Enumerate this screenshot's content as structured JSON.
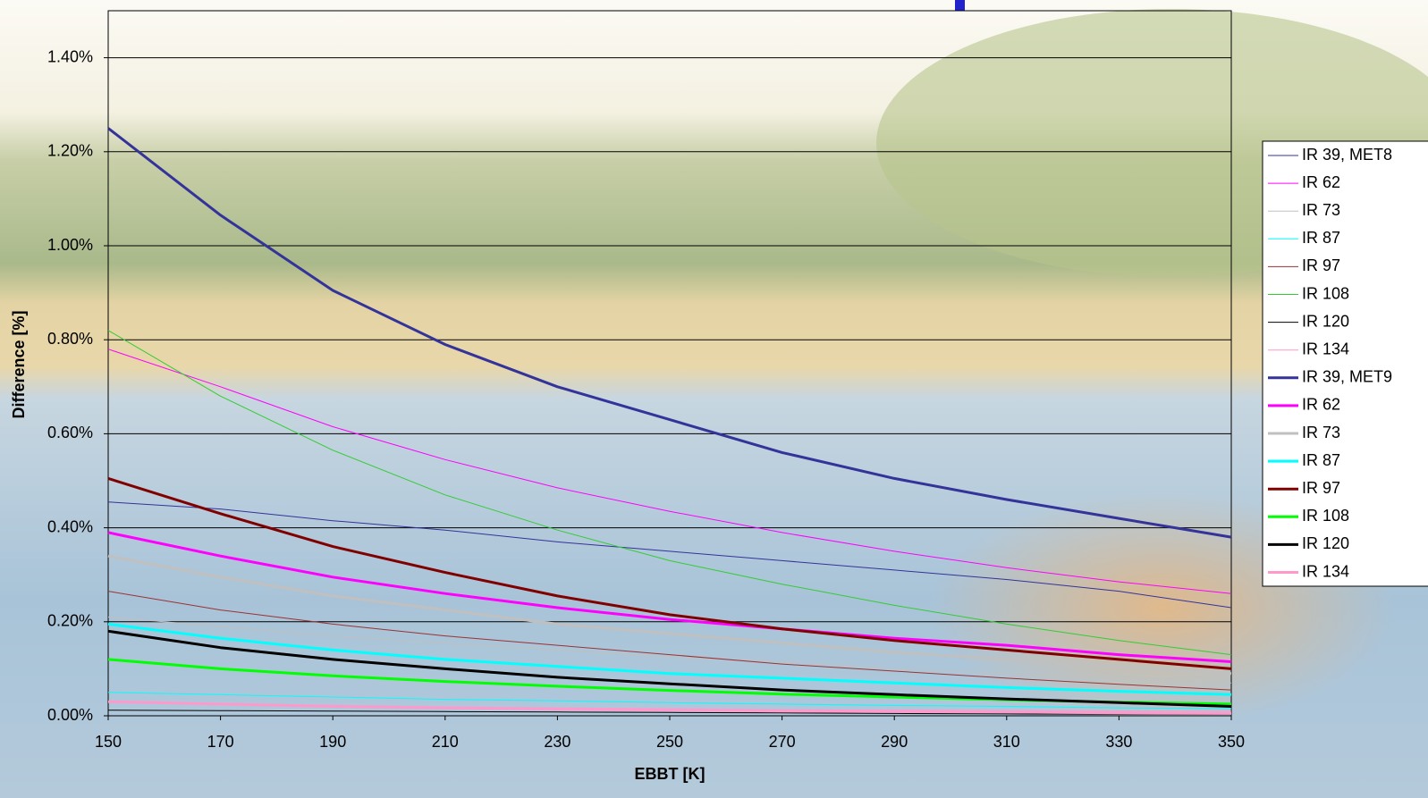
{
  "chart_data": {
    "type": "line",
    "x_label": "EBBT [K]",
    "y_label": "Difference [%]",
    "x": [
      150,
      170,
      190,
      210,
      230,
      250,
      270,
      290,
      310,
      330,
      350
    ],
    "xlim": [
      150,
      350
    ],
    "xticks": [
      150,
      170,
      190,
      210,
      230,
      250,
      270,
      290,
      310,
      330,
      350
    ],
    "ylim": [
      0,
      1.5
    ],
    "yticks": [
      {
        "value": 0,
        "label": "0.00%"
      },
      {
        "value": 0.2,
        "label": "0.20%"
      },
      {
        "value": 0.4,
        "label": "0.40%"
      },
      {
        "value": 0.6,
        "label": "0.60%"
      },
      {
        "value": 0.8,
        "label": "0.80%"
      },
      {
        "value": 1.0,
        "label": "1.00%"
      },
      {
        "value": 1.2,
        "label": "1.20%"
      },
      {
        "value": 1.4,
        "label": "1.40%"
      }
    ],
    "grid": true,
    "legend": "right",
    "series": [
      {
        "name": "IR 39, MET8",
        "color": "#333399",
        "width": 1,
        "values": [
          0.455,
          0.44,
          0.415,
          0.395,
          0.37,
          0.35,
          0.33,
          0.31,
          0.29,
          0.265,
          0.23
        ]
      },
      {
        "name": "IR 62",
        "color": "#ff00ff",
        "width": 1,
        "values": [
          0.78,
          0.7,
          0.615,
          0.545,
          0.485,
          0.435,
          0.39,
          0.35,
          0.315,
          0.285,
          0.26
        ]
      },
      {
        "name": "IR 73",
        "color": "#c0c0c0",
        "width": 1,
        "values": [
          0.21,
          0.19,
          0.17,
          0.155,
          0.14,
          0.125,
          0.115,
          0.1,
          0.09,
          0.08,
          0.07
        ]
      },
      {
        "name": "IR 87",
        "color": "#00ffff",
        "width": 1,
        "values": [
          0.05,
          0.045,
          0.04,
          0.035,
          0.032,
          0.028,
          0.025,
          0.022,
          0.02,
          0.017,
          0.015
        ]
      },
      {
        "name": "IR 97",
        "color": "#993333",
        "width": 1,
        "values": [
          0.265,
          0.225,
          0.195,
          0.17,
          0.15,
          0.13,
          0.11,
          0.095,
          0.08,
          0.067,
          0.055
        ]
      },
      {
        "name": "IR 108",
        "color": "#33cc33",
        "width": 1,
        "values": [
          0.82,
          0.68,
          0.565,
          0.47,
          0.395,
          0.33,
          0.28,
          0.235,
          0.195,
          0.16,
          0.13
        ]
      },
      {
        "name": "IR 120",
        "color": "#000000",
        "width": 1,
        "values": [
          0.012,
          0.011,
          0.01,
          0.009,
          0.008,
          0.007,
          0.006,
          0.005,
          0.004,
          0.0035,
          0.003
        ]
      },
      {
        "name": "IR 134",
        "color": "#ff99cc",
        "width": 1,
        "values": [
          0.03,
          0.026,
          0.022,
          0.019,
          0.017,
          0.015,
          0.013,
          0.012,
          0.011,
          0.01,
          0.01
        ]
      },
      {
        "name": "IR 39, MET9",
        "color": "#333399",
        "width": 3,
        "values": [
          1.25,
          1.065,
          0.905,
          0.79,
          0.7,
          0.63,
          0.56,
          0.505,
          0.46,
          0.42,
          0.38
        ]
      },
      {
        "name": "IR 62",
        "color": "#ff00ff",
        "width": 3,
        "values": [
          0.39,
          0.34,
          0.295,
          0.26,
          0.23,
          0.205,
          0.185,
          0.165,
          0.15,
          0.13,
          0.115
        ]
      },
      {
        "name": "IR 73",
        "color": "#c0c0c0",
        "width": 3,
        "values": [
          0.34,
          0.295,
          0.255,
          0.225,
          0.195,
          0.175,
          0.155,
          0.135,
          0.12,
          0.105,
          0.09
        ]
      },
      {
        "name": "IR 87",
        "color": "#00ffff",
        "width": 3,
        "values": [
          0.195,
          0.165,
          0.14,
          0.12,
          0.105,
          0.09,
          0.08,
          0.07,
          0.06,
          0.052,
          0.045
        ]
      },
      {
        "name": "IR 97",
        "color": "#800000",
        "width": 3,
        "values": [
          0.505,
          0.43,
          0.36,
          0.305,
          0.255,
          0.215,
          0.185,
          0.16,
          0.14,
          0.12,
          0.1
        ]
      },
      {
        "name": "IR 108",
        "color": "#00ff00",
        "width": 3,
        "values": [
          0.12,
          0.1,
          0.085,
          0.073,
          0.063,
          0.054,
          0.046,
          0.04,
          0.034,
          0.029,
          0.025
        ]
      },
      {
        "name": "IR 120",
        "color": "#000000",
        "width": 3,
        "values": [
          0.18,
          0.145,
          0.12,
          0.1,
          0.082,
          0.068,
          0.055,
          0.045,
          0.036,
          0.028,
          0.02
        ]
      },
      {
        "name": "IR 134",
        "color": "#ff99cc",
        "width": 3,
        "values": [
          0.03,
          0.025,
          0.02,
          0.017,
          0.014,
          0.012,
          0.01,
          0.009,
          0.008,
          0.006,
          0.005
        ]
      }
    ]
  }
}
